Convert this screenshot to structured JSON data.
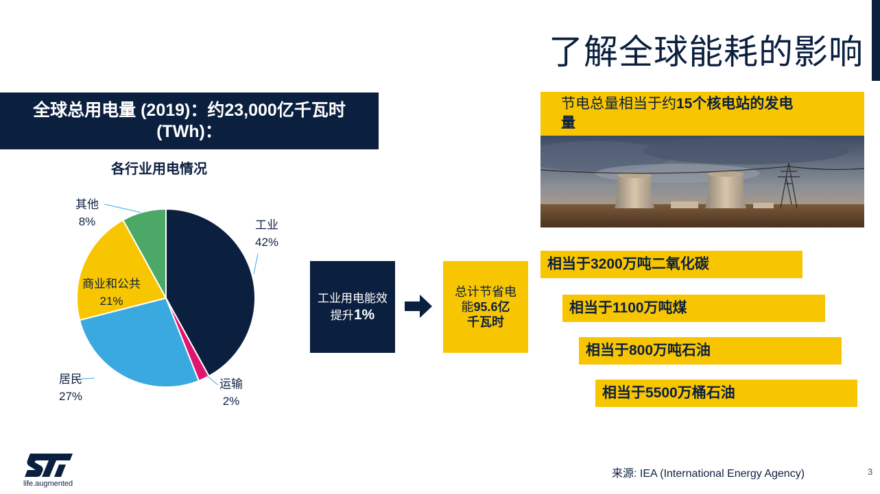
{
  "slide": {
    "title": "了解全球能耗的影响",
    "page_number": "3",
    "source": "来源: IEA (International Energy Agency)",
    "tagline": "life.augmented"
  },
  "consumption_box": {
    "line1": "全球总用电量 (2019)：约23,000亿千瓦时",
    "line2": "(TWh)："
  },
  "chart_data": {
    "type": "pie",
    "title": "各行业用电情况",
    "slices": [
      {
        "label": "工业",
        "value": 42,
        "value_label": "42%",
        "color": "#0b1f3f"
      },
      {
        "label": "运输",
        "value": 2,
        "value_label": "2%",
        "color": "#e0156f"
      },
      {
        "label": "居民",
        "value": 27,
        "value_label": "27%",
        "color": "#3aa9e0"
      },
      {
        "label": "商业和公共",
        "value": 21,
        "value_label": "21%",
        "color": "#f8c600"
      },
      {
        "label": "其他",
        "value": 8,
        "value_label": "8%",
        "color": "#4ba866"
      }
    ]
  },
  "efficiency_box": {
    "line1": "工业用电能效",
    "line2_prefix": "提升",
    "line2_value": "1%"
  },
  "savings_box": {
    "line1": "总计节省电",
    "line2_prefix": "能",
    "line2_value": "95.6亿",
    "line3": "千瓦时"
  },
  "nuclear_box": {
    "prefix": "节电总量相当于约",
    "bold": "15个核电站的发电",
    "line2": "量"
  },
  "equivalents": [
    "相当于3200万吨二氧化碳",
    "相当于1100万吨煤",
    "相当于800万吨石油",
    "相当于5500万桶石油"
  ],
  "colors": {
    "navy": "#0b1f3f",
    "yellow": "#f8c600"
  }
}
